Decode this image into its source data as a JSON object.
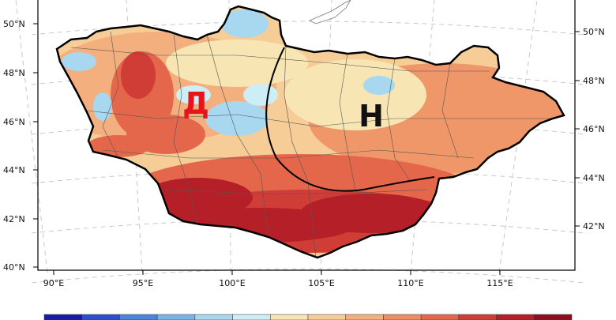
{
  "map": {
    "lat_labels_left": [
      "50°N",
      "48°N",
      "46°N",
      "44°N",
      "42°N",
      "40°N"
    ],
    "lat_labels_right": [
      "50°N",
      "48°N",
      "46°N",
      "44°N",
      "42°N"
    ],
    "lon_labels": [
      "90°E",
      "95°E",
      "100°E",
      "105°E",
      "110°E",
      "115°E"
    ],
    "region_labels": [
      {
        "text": "Д",
        "color": "#e8141c"
      },
      {
        "text": "Н",
        "color": "#111111"
      }
    ],
    "colors": {
      "palette": [
        "#1a1aa8",
        "#2c4fd0",
        "#4a84dc",
        "#79b4e8",
        "#a8d8f0",
        "#cdeef7",
        "#f7e6b4",
        "#f6cd96",
        "#f3b07e",
        "#ee8d62",
        "#e4674c",
        "#d03c36",
        "#b52028",
        "#8e0e1e"
      ],
      "outline": "#000000",
      "admin_border": "#555555"
    }
  }
}
